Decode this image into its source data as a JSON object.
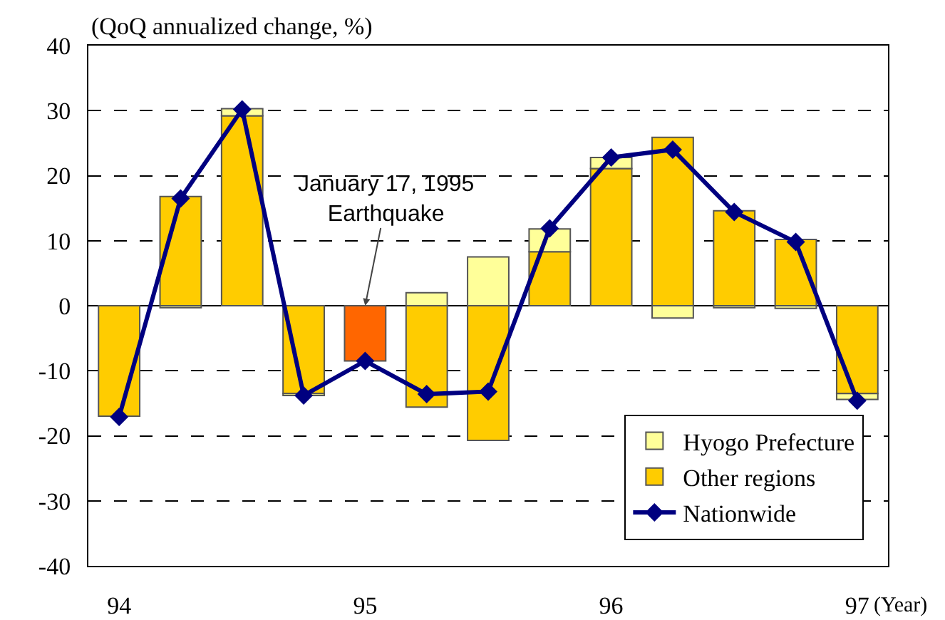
{
  "chart_data": {
    "type": "bar",
    "stacked": true,
    "ylabel": "(QoQ annualized change, %)",
    "xlabel": "(Year)",
    "categories": [
      "94",
      null,
      null,
      null,
      "95",
      null,
      null,
      null,
      "96",
      null,
      null,
      null,
      "97"
    ],
    "series": [
      {
        "name": "Other regions",
        "color": "#ffcc00",
        "colors": [
          null,
          null,
          null,
          null,
          "#ff6600",
          null,
          null,
          null,
          null,
          null,
          null,
          null,
          null
        ],
        "values": [
          -17,
          16.8,
          29.2,
          -13.5,
          -8.5,
          -15.6,
          -20.7,
          8.3,
          21.1,
          25.9,
          14.6,
          10.2,
          -13.5
        ]
      },
      {
        "name": "Hyogo Prefecture",
        "color": "#ffff99",
        "values": [
          null,
          -0.3,
          1.1,
          -0.3,
          null,
          2,
          7.5,
          3.5,
          1.7,
          -1.9,
          -0.3,
          -0.4,
          -0.9
        ]
      },
      {
        "name": "Nationwide",
        "type": "line",
        "color": "#000080",
        "marker": "diamond",
        "line_style": "solid",
        "values": [
          -17.1,
          16.5,
          30.2,
          -13.8,
          -8.5,
          -13.6,
          -13.2,
          11.9,
          22.8,
          24,
          14.4,
          9.8,
          -14.6
        ]
      }
    ],
    "ylim": [
      -40,
      40
    ],
    "yticks": [
      -40,
      -30,
      -20,
      -10,
      0,
      10,
      20,
      30,
      40
    ],
    "grid": "y",
    "legend": "bottom right",
    "annotations": [
      {
        "text": "January 17, 1995\nEarthquake",
        "x": "95",
        "y": 0
      }
    ]
  }
}
